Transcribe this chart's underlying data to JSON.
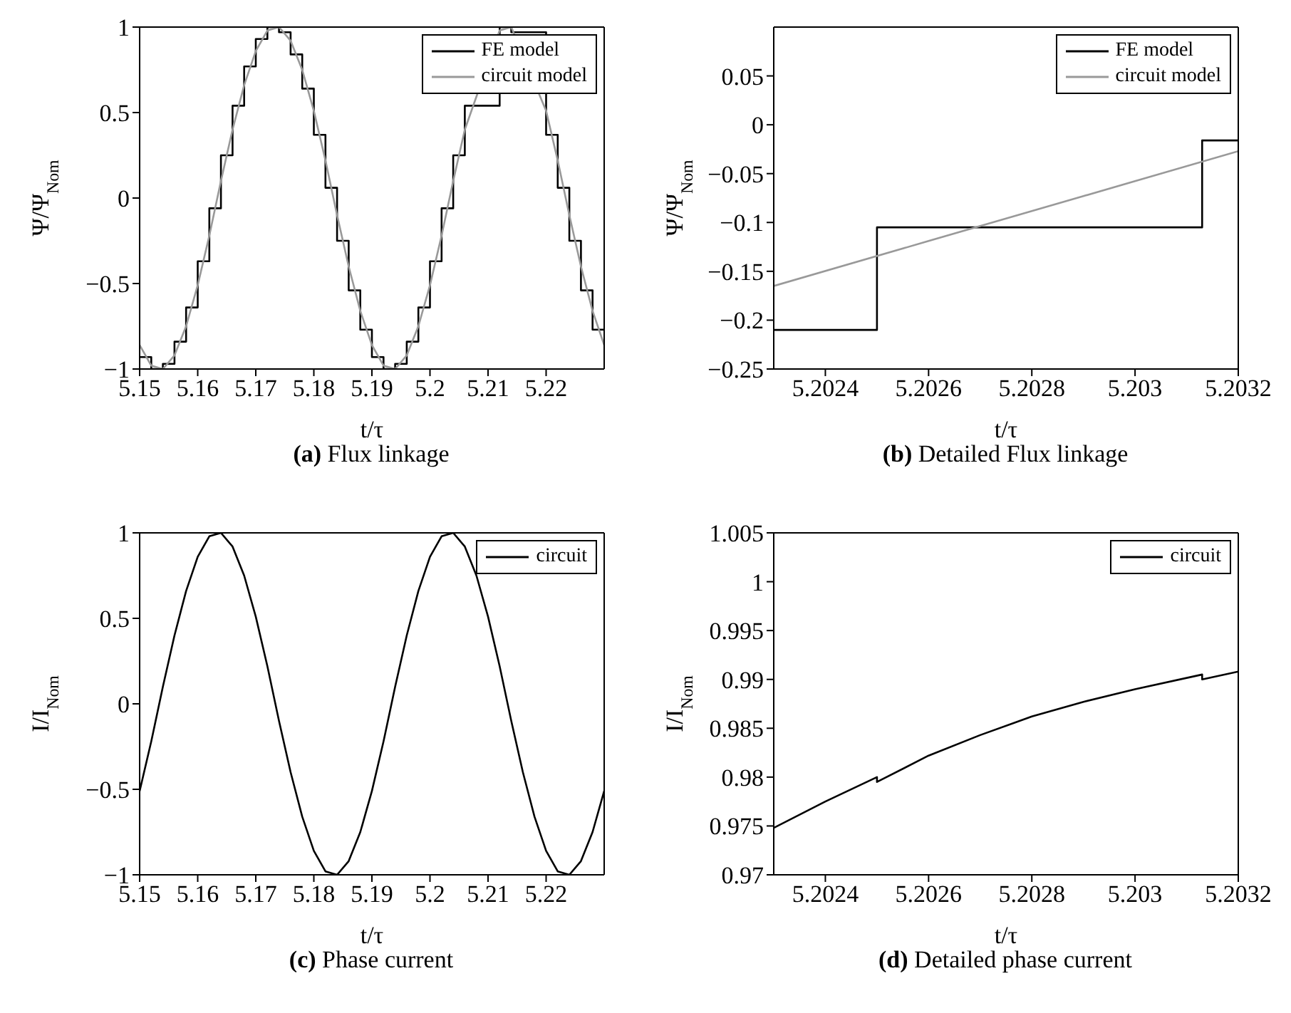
{
  "chart_data": [
    {
      "type": "line",
      "title": "(a) Flux linkage",
      "xlabel": "t/τ",
      "ylabel": "Ψ/Ψ$_{Nom}$",
      "xlim": [
        5.15,
        5.23
      ],
      "xticks": [
        5.15,
        5.16,
        5.17,
        5.18,
        5.19,
        5.2,
        5.21,
        5.22
      ],
      "ylim": [
        -1,
        1
      ],
      "yticks": [
        -1,
        -0.5,
        0,
        0.5,
        1
      ],
      "legend": "top right",
      "marker": "none",
      "x": [
        5.15,
        5.152,
        5.154,
        5.156,
        5.158,
        5.16,
        5.162,
        5.164,
        5.166,
        5.168,
        5.17,
        5.172,
        5.174,
        5.176,
        5.178,
        5.18,
        5.182,
        5.184,
        5.186,
        5.188,
        5.19,
        5.192,
        5.194,
        5.196,
        5.198,
        5.2,
        5.202,
        5.204,
        5.206,
        5.208,
        5.21,
        5.212,
        5.214,
        5.216,
        5.218,
        5.22,
        5.222,
        5.224,
        5.226,
        5.228,
        5.23
      ],
      "series": [
        {
          "name": "FE model",
          "type": "step",
          "color": "#000000",
          "values": [
            -0.93,
            -1,
            -0.97,
            -0.84,
            -0.64,
            -0.37,
            -0.06,
            0.25,
            0.54,
            0.77,
            0.93,
            1,
            0.97,
            0.84,
            0.64,
            0.37,
            0.06,
            -0.25,
            -0.54,
            -0.77,
            -0.93,
            -1,
            -0.97,
            -0.84,
            -0.64,
            -0.37,
            -0.06,
            0.25,
            0.54,
            null,
            null,
            1,
            0.97,
            null,
            null,
            0.37,
            0.06,
            -0.25,
            -0.54,
            -0.77,
            -0.77
          ]
        },
        {
          "name": "circuit model",
          "type": "line",
          "color": "#999999",
          "values": [
            -0.86,
            -0.98,
            -1,
            -0.92,
            -0.75,
            -0.51,
            -0.22,
            0.1,
            0.4,
            0.66,
            0.86,
            0.98,
            1,
            0.92,
            0.75,
            0.51,
            0.22,
            -0.1,
            -0.4,
            -0.66,
            -0.86,
            -0.98,
            -1,
            -0.92,
            -0.75,
            -0.51,
            -0.22,
            0.1,
            0.4,
            null,
            null,
            0.98,
            1,
            null,
            null,
            0.51,
            0.22,
            -0.1,
            -0.4,
            -0.66,
            -0.86
          ]
        }
      ]
    },
    {
      "type": "line",
      "title": "(b) Detailed Flux linkage",
      "xlabel": "t/τ",
      "ylabel": "Ψ/Ψ$_{Nom}$",
      "xlim": [
        5.2023,
        5.2032
      ],
      "xticks": [
        5.2024,
        5.2026,
        5.2028,
        5.203,
        5.2032
      ],
      "ylim": [
        -0.25,
        0.1
      ],
      "yticks": [
        -0.25,
        -0.2,
        -0.15,
        -0.1,
        -0.05,
        0,
        0.05
      ],
      "legend": "top right",
      "marker": "none",
      "series": [
        {
          "name": "FE model",
          "type": "step",
          "color": "#000000",
          "x": [
            5.2023,
            5.2025,
            5.20313,
            5.2032
          ],
          "values": [
            -0.21,
            -0.105,
            -0.016,
            -0.016
          ]
        },
        {
          "name": "circuit model",
          "type": "line",
          "color": "#999999",
          "x": [
            5.2023,
            5.2026,
            5.2029,
            5.2032
          ],
          "values": [
            -0.165,
            -0.119,
            -0.073,
            -0.027
          ]
        }
      ]
    },
    {
      "type": "line",
      "title": "(c) Phase current",
      "xlabel": "t/τ",
      "ylabel": "I/I$_{Nom}$",
      "xlim": [
        5.15,
        5.23
      ],
      "xticks": [
        5.15,
        5.16,
        5.17,
        5.18,
        5.19,
        5.2,
        5.21,
        5.22
      ],
      "ylim": [
        -1,
        1
      ],
      "yticks": [
        -1,
        -0.5,
        0,
        0.5,
        1
      ],
      "legend": "top right",
      "marker": "none",
      "x": [
        5.15,
        5.152,
        5.154,
        5.156,
        5.158,
        5.16,
        5.162,
        5.164,
        5.166,
        5.168,
        5.17,
        5.172,
        5.174,
        5.176,
        5.178,
        5.18,
        5.182,
        5.184,
        5.186,
        5.188,
        5.19,
        5.192,
        5.194,
        5.196,
        5.198,
        5.2,
        5.202,
        5.204,
        5.206,
        5.208,
        5.21,
        5.212,
        5.214,
        5.216,
        5.218,
        5.22,
        5.222,
        5.224,
        5.226,
        5.228,
        5.23
      ],
      "series": [
        {
          "name": "circuit",
          "type": "line",
          "color": "#000000",
          "values": [
            -0.51,
            -0.22,
            0.1,
            0.4,
            0.66,
            0.86,
            0.98,
            1,
            0.92,
            0.75,
            0.51,
            0.22,
            -0.1,
            -0.4,
            -0.66,
            -0.86,
            -0.98,
            -1,
            -0.92,
            -0.75,
            -0.51,
            -0.22,
            0.1,
            0.4,
            0.66,
            0.86,
            0.98,
            1,
            0.92,
            0.75,
            0.51,
            0.22,
            -0.1,
            -0.4,
            -0.66,
            -0.86,
            -0.98,
            -1,
            -0.92,
            -0.75,
            -0.51
          ]
        }
      ]
    },
    {
      "type": "line",
      "title": "(d) Detailed phase current",
      "xlabel": "t/τ",
      "ylabel": "I/I$_{Nom}$",
      "xlim": [
        5.2023,
        5.2032
      ],
      "xticks": [
        5.2024,
        5.2026,
        5.2028,
        5.203,
        5.2032
      ],
      "ylim": [
        0.97,
        1.005
      ],
      "yticks": [
        0.97,
        0.975,
        0.98,
        0.985,
        0.99,
        0.995,
        1,
        1.005
      ],
      "legend": "top right",
      "marker": "none",
      "x": [
        5.2023,
        5.2024,
        5.2025,
        5.2025,
        5.2026,
        5.2027,
        5.2028,
        5.2029,
        5.203,
        5.20313,
        5.20313,
        5.2032
      ],
      "series": [
        {
          "name": "circuit",
          "type": "line",
          "color": "#000000",
          "values": [
            0.9748,
            0.9775,
            0.98,
            0.9795,
            0.9822,
            0.9843,
            0.9862,
            0.9877,
            0.989,
            0.9905,
            0.99,
            0.9908
          ]
        }
      ]
    }
  ]
}
